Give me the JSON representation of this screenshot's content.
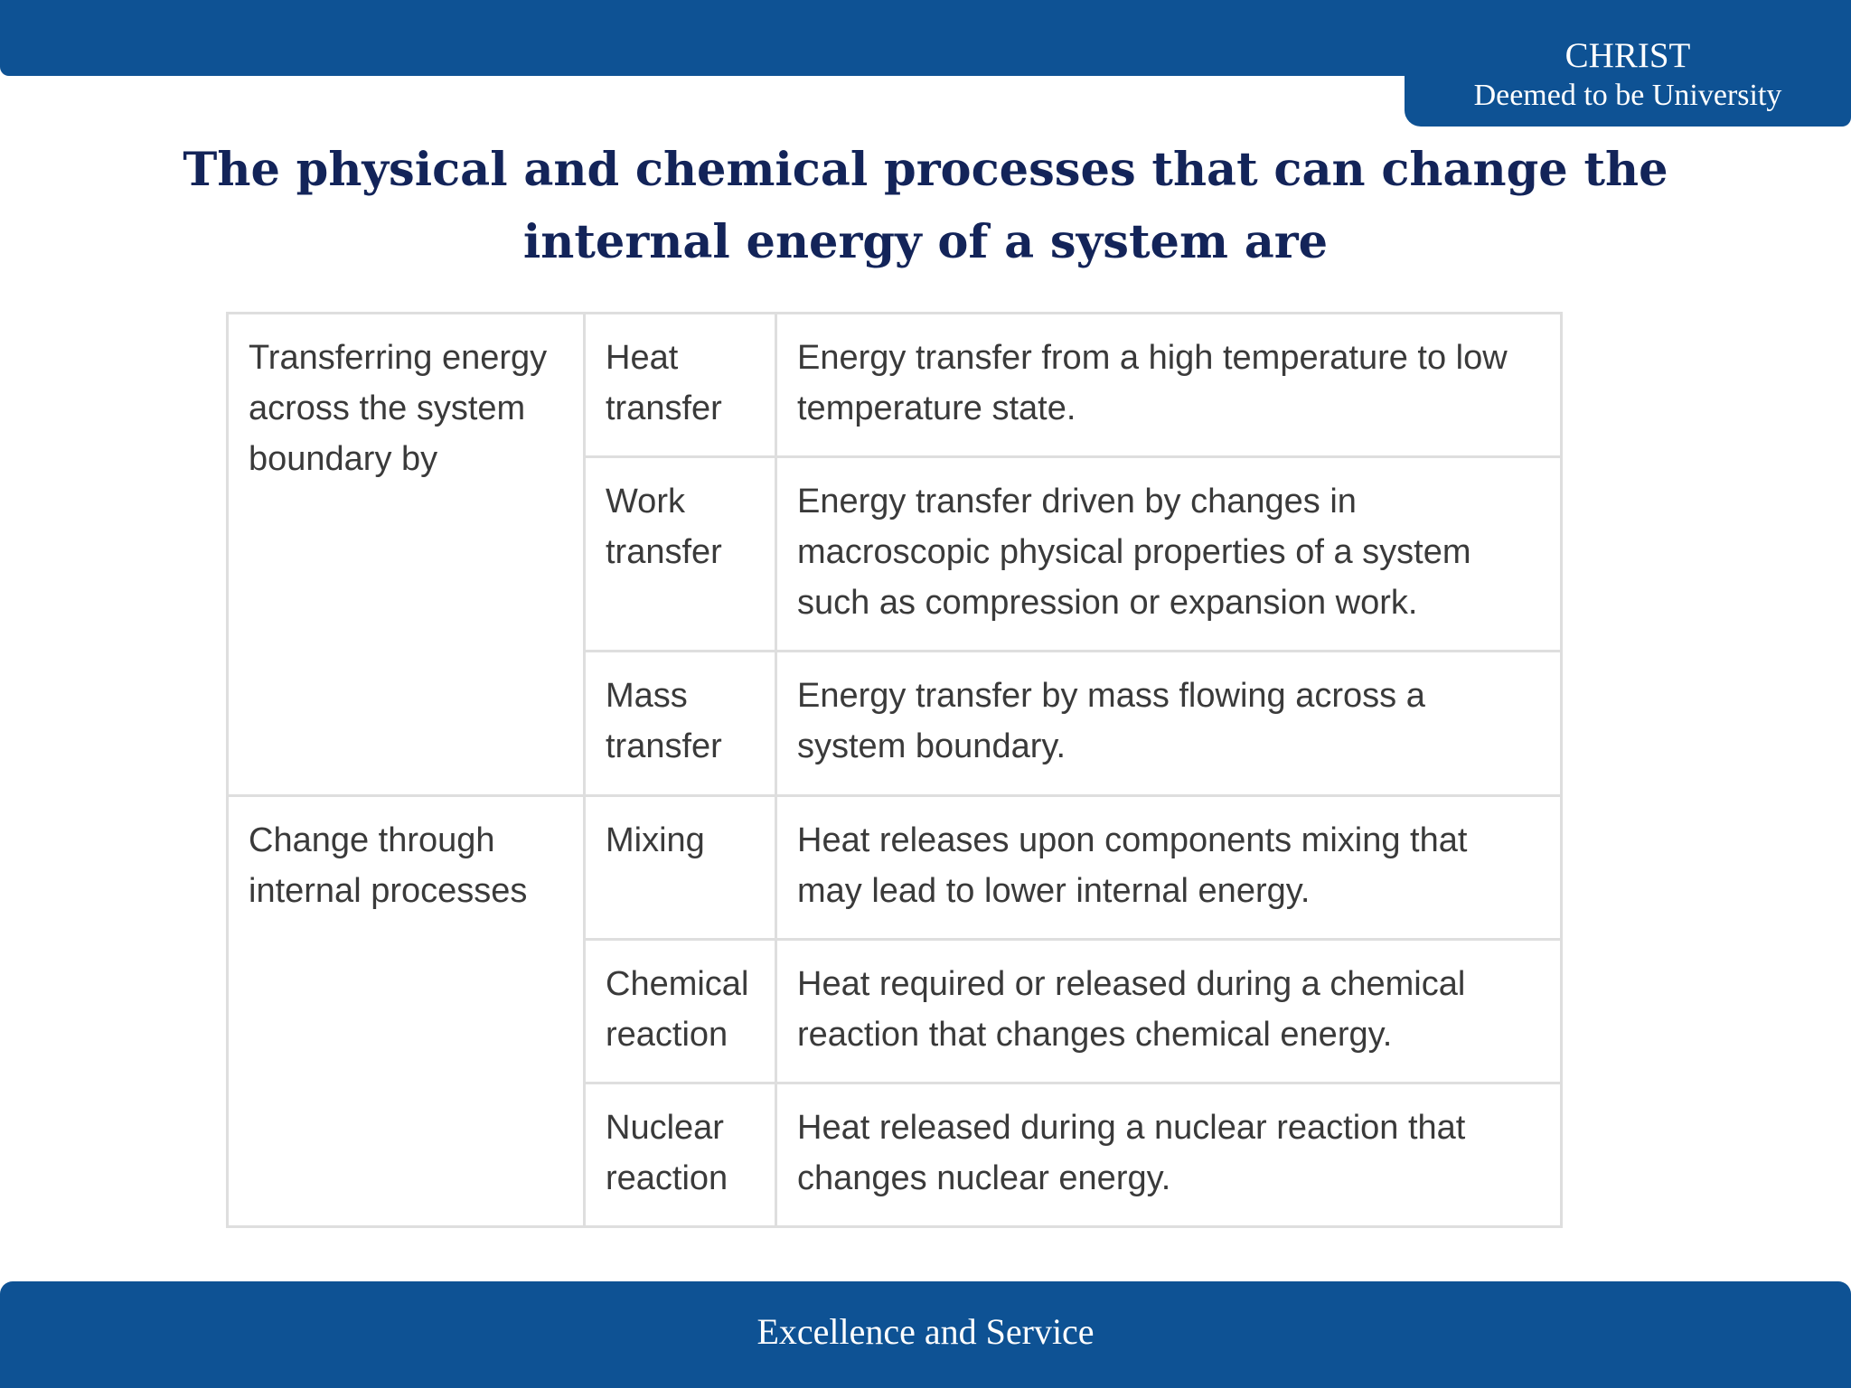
{
  "header": {
    "brand_name": "CHRIST",
    "brand_subtitle": "Deemed to be University",
    "color": "#0e5294"
  },
  "slide": {
    "title": "The physical and chemical processes that can change the internal energy of a system are"
  },
  "table": {
    "groups": [
      {
        "category": "Transferring energy across the system boundary by",
        "rows": [
          {
            "process": "Heat transfer",
            "description": "Energy transfer from a high temperature to low temperature state."
          },
          {
            "process": "Work transfer",
            "description": "Energy transfer driven by changes in macroscopic physical properties of a system such as compression or expansion work."
          },
          {
            "process": "Mass transfer",
            "description": "Energy transfer by mass flowing across a system boundary."
          }
        ]
      },
      {
        "category": "Change through internal processes",
        "rows": [
          {
            "process": "Mixing",
            "description": "Heat releases upon components mixing that may lead to lower internal energy."
          },
          {
            "process": "Chemical reaction",
            "description": "Heat required or released during a chemical reaction that changes chemical energy."
          },
          {
            "process": "Nuclear reaction",
            "description": "Heat released during a nuclear reaction that changes nuclear energy."
          }
        ]
      }
    ]
  },
  "footer": {
    "motto": "Excellence and Service"
  }
}
